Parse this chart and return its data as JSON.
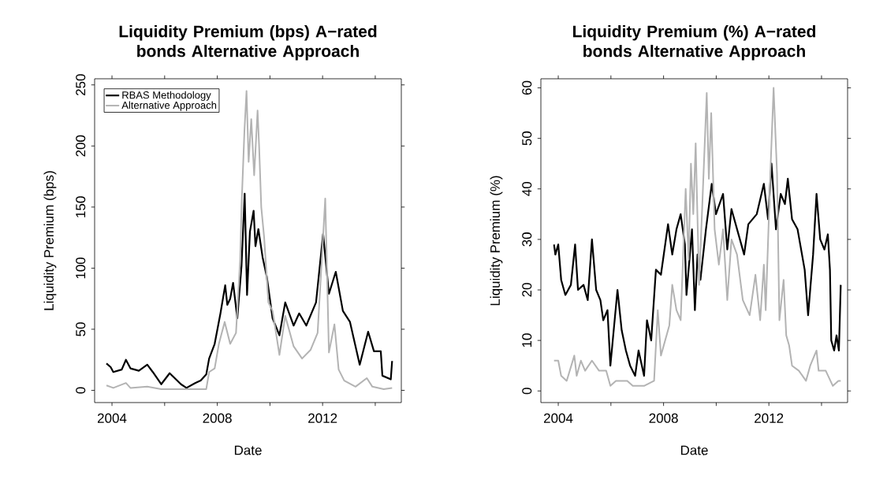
{
  "chart_data": [
    {
      "type": "line",
      "title": "Liquidity Premium (bps) A−rated bonds Alternative Approach",
      "xlabel": "Date",
      "ylabel": "Liquidity Premium (bps)",
      "xlim": [
        2003.34,
        2014.99
      ],
      "ylim": [
        -10,
        255
      ],
      "xticks": [
        2004,
        {
          "value": 2006,
          "label": null
        },
        2008,
        {
          "value": 2010,
          "label": null
        },
        2012,
        {
          "value": 2014,
          "label": null
        }
      ],
      "yticks": [
        0,
        50,
        100,
        150,
        200,
        250
      ],
      "legend": "top left",
      "marker": "none",
      "line_style": "solid",
      "series": [
        {
          "name": "RBAS Methodology",
          "color": "#000000",
          "x": [
            2003.79,
            2003.95,
            2004.05,
            2004.37,
            2004.53,
            2004.7,
            2005.02,
            2005.34,
            2005.55,
            2005.87,
            2006.19,
            2006.62,
            2006.83,
            2007.16,
            2007.37,
            2007.58,
            2007.69,
            2007.9,
            2008.12,
            2008.3,
            2008.38,
            2008.49,
            2008.6,
            2008.76,
            2008.92,
            2009.04,
            2009.13,
            2009.24,
            2009.38,
            2009.45,
            2009.56,
            2009.72,
            2009.88,
            2010.1,
            2010.36,
            2010.58,
            2010.9,
            2011.11,
            2011.38,
            2011.75,
            2012.02,
            2012.24,
            2012.5,
            2012.77,
            2013.04,
            2013.41,
            2013.73,
            2013.95,
            2014.21,
            2014.27,
            2014.59,
            2014.64
          ],
          "values": [
            22,
            19,
            15,
            17,
            25,
            18,
            16,
            21,
            15,
            5,
            14,
            5,
            2,
            6,
            8,
            13,
            26,
            38,
            63,
            86,
            70,
            75,
            88,
            59,
            102,
            161,
            78,
            130,
            147,
            118,
            132,
            109,
            93,
            59,
            45,
            72,
            53,
            63,
            53,
            72,
            128,
            79,
            97,
            65,
            56,
            21,
            48,
            32,
            32,
            12,
            9,
            24
          ]
        },
        {
          "name": "Alternative Approach",
          "color": "#b3b3b3",
          "x": [
            2003.79,
            2004.05,
            2004.53,
            2004.7,
            2005.34,
            2005.87,
            2006.73,
            2007.58,
            2007.69,
            2007.9,
            2008.06,
            2008.28,
            2008.49,
            2008.71,
            2008.87,
            2008.92,
            2009.03,
            2009.11,
            2009.19,
            2009.29,
            2009.4,
            2009.45,
            2009.53,
            2009.59,
            2009.67,
            2009.78,
            2009.94,
            2010.1,
            2010.36,
            2010.58,
            2010.9,
            2011.22,
            2011.54,
            2011.81,
            2011.97,
            2012.1,
            2012.24,
            2012.45,
            2012.61,
            2012.82,
            2013.25,
            2013.68,
            2013.89,
            2014.32,
            2014.64
          ],
          "values": [
            4,
            2,
            6,
            2,
            3,
            1,
            1,
            1,
            15,
            18,
            38,
            56,
            38,
            47,
            107,
            150,
            212,
            245,
            187,
            222,
            176,
            196,
            229,
            199,
            150,
            125,
            72,
            65,
            29,
            61,
            36,
            26,
            33,
            47,
            107,
            157,
            31,
            54,
            17,
            8,
            3,
            10,
            3,
            1,
            2
          ]
        }
      ]
    },
    {
      "type": "line",
      "title": "Liquidity Premium (%) A−rated bonds Alternative Approach",
      "xlabel": "Date",
      "ylabel": "Liquidity Premium (%)",
      "xlim": [
        2003.34,
        2014.99
      ],
      "ylim": [
        -2.3,
        61.8
      ],
      "xticks": [
        2004,
        {
          "value": 2006,
          "label": null
        },
        2008,
        {
          "value": 2010,
          "label": null
        },
        2012,
        {
          "value": 2014,
          "label": null
        }
      ],
      "yticks": [
        0,
        10,
        20,
        30,
        40,
        50,
        60
      ],
      "marker": "none",
      "line_style": "solid",
      "series": [
        {
          "color": "#000000",
          "x": [
            2003.84,
            2003.89,
            2004.0,
            2004.11,
            2004.27,
            2004.48,
            2004.64,
            2004.75,
            2004.96,
            2005.12,
            2005.28,
            2005.44,
            2005.6,
            2005.71,
            2005.87,
            2005.98,
            2006.25,
            2006.41,
            2006.57,
            2006.73,
            2006.92,
            2007.05,
            2007.26,
            2007.37,
            2007.53,
            2007.71,
            2007.9,
            2008.17,
            2008.33,
            2008.49,
            2008.65,
            2008.81,
            2008.87,
            2009.08,
            2009.19,
            2009.29,
            2009.4,
            2009.61,
            2009.83,
            2009.99,
            2010.26,
            2010.42,
            2010.58,
            2010.9,
            2011.06,
            2011.22,
            2011.54,
            2011.81,
            2011.97,
            2012.1,
            2012.27,
            2012.45,
            2012.61,
            2012.72,
            2012.88,
            2013.09,
            2013.36,
            2013.49,
            2013.68,
            2013.81,
            2013.95,
            2014.11,
            2014.24,
            2014.32,
            2014.37,
            2014.48,
            2014.57,
            2014.66,
            2014.73
          ],
          "values": [
            29,
            27,
            29,
            22,
            19,
            21,
            29,
            20,
            21,
            18,
            30,
            20,
            18,
            14,
            16,
            5,
            20,
            12,
            8,
            5,
            3,
            8,
            3,
            14,
            10,
            24,
            23,
            33,
            27,
            32,
            35,
            29,
            19,
            32,
            16,
            27,
            22,
            32,
            41,
            35,
            39,
            28,
            36,
            30,
            27,
            33,
            35,
            41,
            34,
            45,
            32,
            39,
            37,
            42,
            34,
            32,
            24,
            15,
            27,
            39,
            30,
            28,
            31,
            24,
            10,
            8,
            11,
            8,
            21
          ]
        },
        {
          "color": "#b3b3b3",
          "x": [
            2003.84,
            2004.0,
            2004.11,
            2004.32,
            2004.61,
            2004.7,
            2004.86,
            2005.02,
            2005.28,
            2005.55,
            2005.82,
            2005.98,
            2006.19,
            2006.62,
            2006.83,
            2007.26,
            2007.64,
            2007.78,
            2007.9,
            2008.22,
            2008.33,
            2008.49,
            2008.65,
            2008.84,
            2008.95,
            2009.04,
            2009.13,
            2009.22,
            2009.35,
            2009.45,
            2009.64,
            2009.72,
            2009.81,
            2009.94,
            2010.1,
            2010.26,
            2010.42,
            2010.58,
            2010.79,
            2011.01,
            2011.27,
            2011.49,
            2011.67,
            2011.81,
            2011.88,
            2012.07,
            2012.18,
            2012.31,
            2012.4,
            2012.56,
            2012.66,
            2012.77,
            2012.88,
            2013.14,
            2013.41,
            2013.57,
            2013.81,
            2013.89,
            2014.16,
            2014.43,
            2014.64,
            2014.73
          ],
          "values": [
            6,
            6,
            3,
            2,
            7,
            3,
            6,
            4,
            6,
            4,
            4,
            1,
            2,
            2,
            1,
            1,
            2,
            16,
            7,
            13,
            21,
            16,
            14,
            40,
            26,
            45,
            35,
            49,
            21,
            34,
            59,
            42,
            55,
            32,
            25,
            32,
            18,
            30,
            27,
            18,
            15,
            23,
            14,
            25,
            16,
            45,
            60,
            43,
            14,
            22,
            11,
            9,
            5,
            4,
            2,
            5,
            8,
            4,
            4,
            1,
            2,
            2
          ]
        }
      ]
    }
  ]
}
